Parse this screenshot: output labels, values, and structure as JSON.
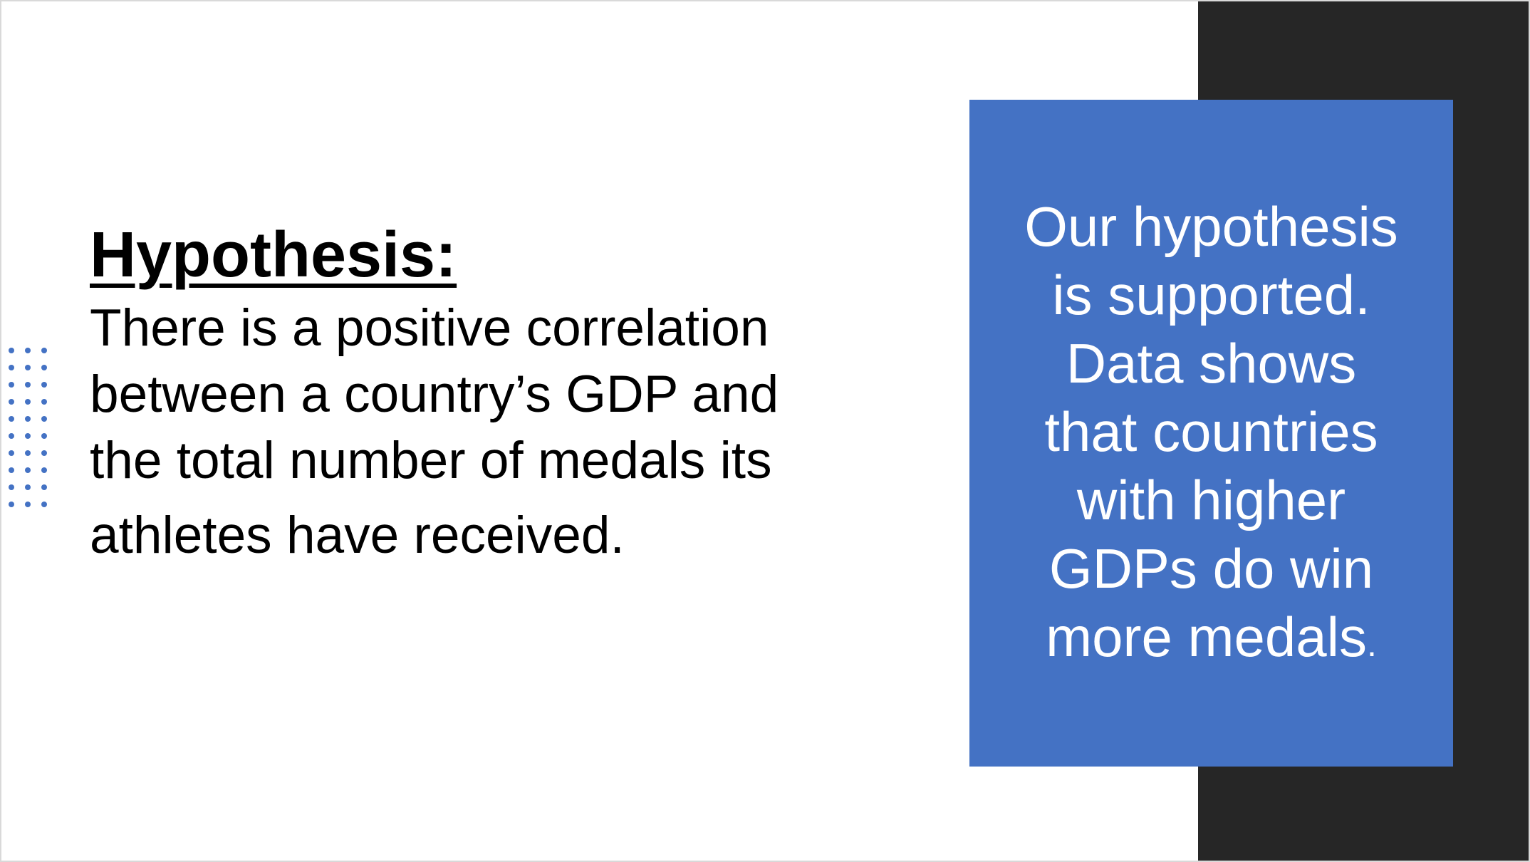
{
  "slide": {
    "title": "Hypothesis:",
    "body_lines": [
      "There is a positive correlation",
      "between a country’s GDP and",
      "the total number of medals its",
      "athletes have received."
    ],
    "conclusion_lines": [
      "Our hypothesis",
      "is supported.",
      "Data shows",
      "that countries",
      "with higher",
      "GDPs do win",
      "more medals"
    ],
    "conclusion_final_period": "."
  },
  "colors": {
    "accent_blue": "#4472c4",
    "dark_panel": "#262626",
    "text_dark": "#000000",
    "text_light": "#ffffff"
  }
}
